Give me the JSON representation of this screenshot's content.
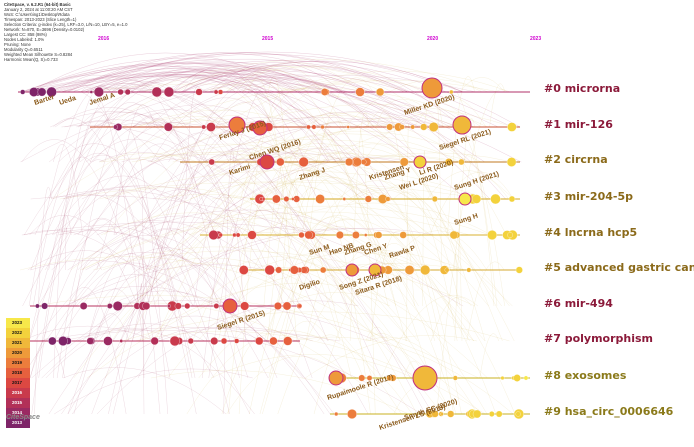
{
  "header": {
    "lines": [
      "CiteSpace, v. 6.2.R1 (64-bit) Basic",
      "January 2, 2024 at 11:00:20 AM CST",
      "WoS: C:\\Users\\ing1\\Desktop\\Rdata",
      "Timespan: 2013-2023 (Slice Length=1)",
      "Selection Criteria: g-index (k=25), LRF=3.0, L/N=10, LBY=5, e=1.0",
      "Network: N=870, E=3696 (Density=0.0102)",
      "Largest CC: 858 (98%)",
      "Nodes Labeled: 1.0%",
      "Pruning: None",
      "Modularity Q=0.6511",
      "Weighted Mean Silhouette S=0.8284",
      "Harmonic Mean(Q, S)=0.733"
    ]
  },
  "timeline_years": [
    "2016",
    "2015",
    "2020",
    "2023"
  ],
  "clusters": [
    {
      "id": "#0",
      "label": "#0 microrna",
      "color": "#8b1a3a"
    },
    {
      "id": "#1",
      "label": "#1 mir-126",
      "color": "#8b1a3a"
    },
    {
      "id": "#2",
      "label": "#2 circrna",
      "color": "#8b6a1a"
    },
    {
      "id": "#3",
      "label": "#3 mir-204-5p",
      "color": "#8b6a1a"
    },
    {
      "id": "#4",
      "label": "#4 lncrna hcp5",
      "color": "#8b6a1a"
    },
    {
      "id": "#5",
      "label": "#5 advanced gastric cancer",
      "color": "#8b6a1a"
    },
    {
      "id": "#6",
      "label": "#6 mir-494",
      "color": "#8b1a3a"
    },
    {
      "id": "#7",
      "label": "#7 polymorphism",
      "color": "#8b1a3a"
    },
    {
      "id": "#8",
      "label": "#8 exosomes",
      "color": "#8b7a1a"
    },
    {
      "id": "#9",
      "label": "#9 hsa_circ_0006646",
      "color": "#8b7a1a"
    }
  ],
  "legend": {
    "years": [
      "2023",
      "2022",
      "2021",
      "2020",
      "2019",
      "2018",
      "2017",
      "2016",
      "2015",
      "2014",
      "2013"
    ],
    "colors": [
      "#f7e84a",
      "#f3d23c",
      "#f0b83a",
      "#ee9a3a",
      "#ec7d3c",
      "#e6603e",
      "#dc4842",
      "#c93a4c",
      "#b23058",
      "#9a2a62",
      "#7e2468"
    ]
  },
  "brand": "CiteSpace",
  "node_labels": [
    "Miller KD (2020)",
    "Siegel RL (2021)",
    "Ferlay J (2015)",
    "Chen WQ (2016)",
    "Song Z (2021)",
    "Siegel R (2015)",
    "Smyth EC (2020)",
    "Rupaimoole R (2017)",
    "Sitara R (2018)",
    "Ueda",
    "Barter",
    "Jemal A",
    "Zhang J",
    "Kristensen",
    "Sung H (2021)",
    "Li R (2020)",
    "Wei L (2020)",
    "Sung H",
    "Zhang G",
    "Rawla P",
    "Zhang Y",
    "Digilio",
    "Sun M",
    "Hao NB",
    "Chen Y",
    "Karimi",
    "Kristensen LS (2019)"
  ]
}
